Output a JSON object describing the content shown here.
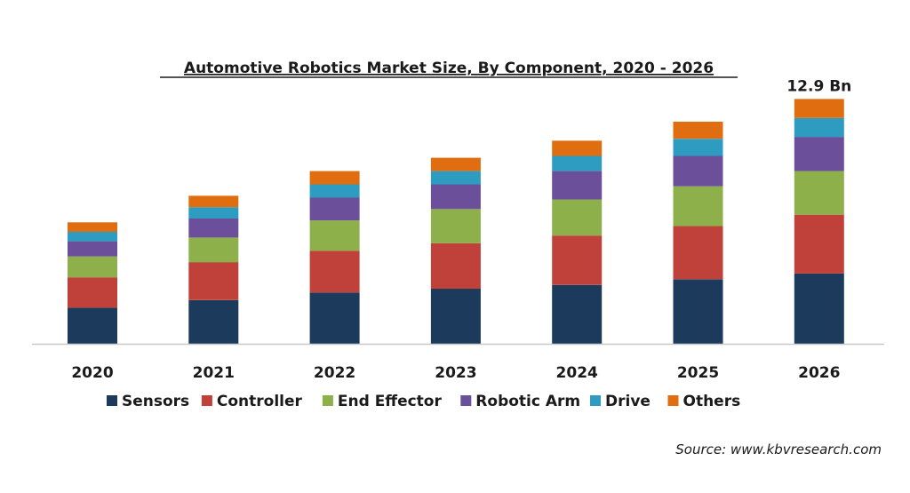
{
  "chart_data": {
    "type": "bar",
    "stacked": true,
    "title": "Automotive Robotics Market Size, By Component, 2020 - 2026",
    "categories": [
      "2020",
      "2021",
      "2022",
      "2023",
      "2024",
      "2025",
      "2026"
    ],
    "series": [
      {
        "name": "Sensors",
        "color": "#1b3a5c",
        "values": [
          1.9,
          2.3,
          2.7,
          2.9,
          3.1,
          3.4,
          3.7
        ]
      },
      {
        "name": "Controller",
        "color": "#c0403a",
        "values": [
          1.6,
          2.0,
          2.2,
          2.4,
          2.6,
          2.8,
          3.1
        ]
      },
      {
        "name": "End Effector",
        "color": "#8db04a",
        "values": [
          1.1,
          1.3,
          1.6,
          1.8,
          1.9,
          2.1,
          2.3
        ]
      },
      {
        "name": "Robotic Arm",
        "color": "#6c4f9a",
        "values": [
          0.8,
          1.0,
          1.2,
          1.3,
          1.5,
          1.6,
          1.8
        ]
      },
      {
        "name": "Drive",
        "color": "#2e9bc0",
        "values": [
          0.5,
          0.6,
          0.7,
          0.7,
          0.8,
          0.9,
          1.0
        ]
      },
      {
        "name": "Others",
        "color": "#e06d10",
        "values": [
          0.5,
          0.6,
          0.7,
          0.7,
          0.8,
          0.9,
          1.0
        ]
      }
    ],
    "annotations": [
      {
        "category": "2026",
        "text": "12.9 Bn"
      }
    ],
    "ylim": [
      0,
      13.2
    ],
    "grid": false,
    "legend_position": "bottom",
    "source": "Source: www.kbvresearch.com"
  }
}
